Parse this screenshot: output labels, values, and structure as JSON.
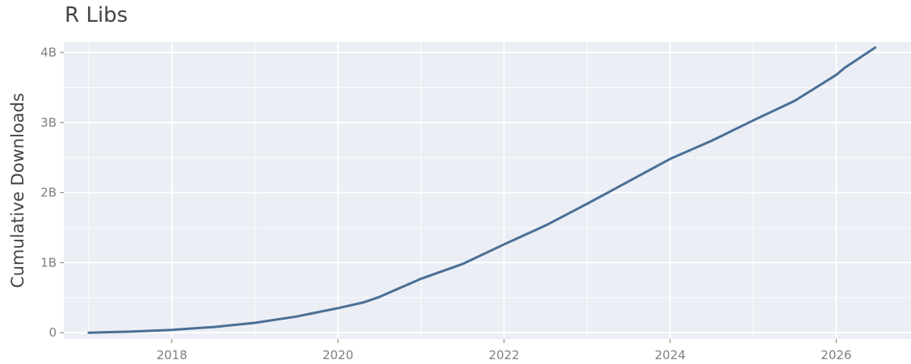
{
  "chart_data": {
    "type": "line",
    "title": "R Libs",
    "xlabel": "",
    "ylabel": "Cumulative Downloads",
    "xlim": [
      2016.7,
      2026.9
    ],
    "ylim": [
      -0.09,
      4.15
    ],
    "x_ticks": [
      2018,
      2020,
      2022,
      2024,
      2026
    ],
    "x_tick_labels": [
      "2018",
      "2020",
      "2022",
      "2024",
      "2026"
    ],
    "y_ticks": [
      0,
      1,
      2,
      3,
      4
    ],
    "y_tick_labels": [
      "0",
      "1B",
      "2B",
      "3B",
      "4B"
    ],
    "grid": true,
    "series": [
      {
        "color": "#4a6f96",
        "x": [
          2017.0,
          2017.5,
          2018.0,
          2018.5,
          2019.0,
          2019.5,
          2020.0,
          2020.3,
          2020.5,
          2021.0,
          2021.5,
          2022.0,
          2022.5,
          2023.0,
          2023.5,
          2024.0,
          2024.5,
          2025.0,
          2025.5,
          2026.0,
          2026.1,
          2026.47
        ],
        "values": [
          0.0,
          0.015,
          0.04,
          0.08,
          0.14,
          0.23,
          0.35,
          0.43,
          0.51,
          0.77,
          0.98,
          1.26,
          1.53,
          1.84,
          2.16,
          2.48,
          2.74,
          3.03,
          3.31,
          3.68,
          3.78,
          4.07
        ]
      }
    ]
  }
}
